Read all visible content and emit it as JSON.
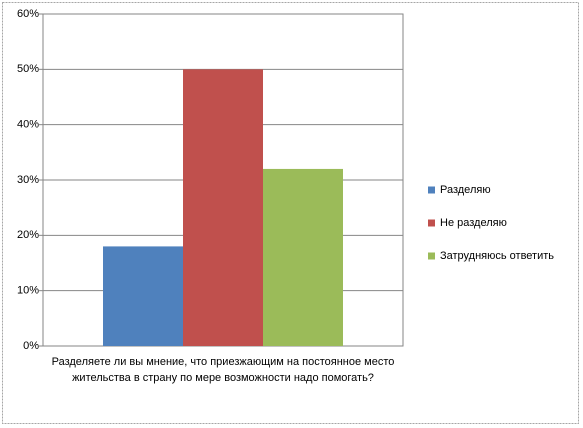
{
  "chart_data": {
    "type": "bar",
    "categories": [
      "Разделяете ли вы мнение, что приезжающим на постоянное место жительства в страну по мере возможности надо помогать?"
    ],
    "series": [
      {
        "name": "Разделяю",
        "color": "#4f81bd",
        "values": [
          18
        ]
      },
      {
        "name": "Не разделяю",
        "color": "#c0504d",
        "values": [
          50
        ]
      },
      {
        "name": "Затрудняюсь ответить",
        "color": "#9bbb59",
        "values": [
          32
        ]
      }
    ],
    "ylim": [
      0,
      60
    ],
    "yticks": [
      {
        "value": 0,
        "label": "0%"
      },
      {
        "value": 10,
        "label": "10%"
      },
      {
        "value": 20,
        "label": "20%"
      },
      {
        "value": 30,
        "label": "30%"
      },
      {
        "value": 40,
        "label": "40%"
      },
      {
        "value": 50,
        "label": "50%"
      },
      {
        "value": 60,
        "label": "60%"
      }
    ],
    "grid": true,
    "legend": "right"
  }
}
